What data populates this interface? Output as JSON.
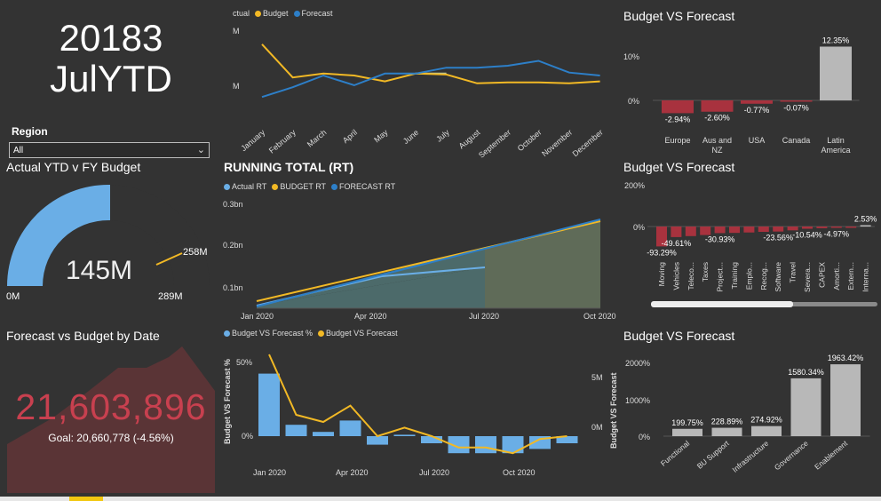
{
  "header": {
    "line1": "20183",
    "line2": "JulYTD"
  },
  "region": {
    "label": "Region",
    "value": "All"
  },
  "gauge": {
    "title": "Actual YTD v FY Budget",
    "value_label": "145M",
    "min_label": "0M",
    "max_label": "289M",
    "target_label": "258M",
    "value": 145,
    "max": 289,
    "target": 258,
    "color": "#6aaee6"
  },
  "forecast_date": {
    "title": "Forecast vs Budget by Date",
    "kpi": "21,603,896",
    "goal": "Goal: 20,660,778 (-4.56%)",
    "color": "#c8404f"
  },
  "monthly_line": {
    "legend": [
      "ctual",
      "Budget",
      "Forecast"
    ],
    "y_ticks": [
      "M",
      "M"
    ],
    "months": [
      "January",
      "February",
      "March",
      "April",
      "May",
      "June",
      "July",
      "August",
      "September",
      "October",
      "November",
      "December"
    ],
    "actual": [
      null,
      null,
      null,
      null,
      null,
      0.52,
      0.52,
      null,
      null,
      null,
      null,
      null
    ],
    "budget": [
      0.82,
      0.48,
      0.52,
      0.5,
      0.44,
      0.52,
      0.51,
      0.42,
      0.43,
      0.43,
      0.42,
      0.44
    ],
    "forecast": [
      0.28,
      0.38,
      0.5,
      0.4,
      0.52,
      0.52,
      0.58,
      0.58,
      0.6,
      0.65,
      0.53,
      0.5
    ]
  },
  "running_total": {
    "title": "RUNNING TOTAL (RT)",
    "legend": [
      "Actual RT",
      "BUDGET RT",
      "FORECAST RT"
    ],
    "y_ticks": [
      "0.1bn",
      "0.2bn",
      "0.3bn"
    ],
    "x_ticks": [
      "Jan 2020",
      "Apr 2020",
      "Jul 2020",
      "Oct 2020"
    ]
  },
  "budget_pct": {
    "legend": [
      "Budget VS Forecast %",
      "Budget VS Forecast"
    ],
    "y_left_label": "Budget VS Forecast %",
    "y_right_label": "Budget VS Forecast",
    "y_left_ticks": [
      "0%",
      "50%"
    ],
    "y_right_ticks": [
      "0M",
      "5M"
    ],
    "x_ticks": [
      "Jan 2020",
      "Apr 2020",
      "Jul 2020",
      "Oct 2020"
    ]
  },
  "bvf_region": {
    "title": "Budget VS Forecast",
    "y_ticks": [
      "0%",
      "10%"
    ],
    "categories": [
      "Europe",
      "Aus and NZ",
      "USA",
      "Canada",
      "Latin America"
    ],
    "values": [
      -2.94,
      -2.6,
      -0.77,
      -0.07,
      12.35
    ],
    "labels": [
      "-2.94%",
      "-2.60%",
      "-0.77%",
      "-0.07%",
      "12.35%"
    ]
  },
  "bvf_category": {
    "title": "Budget VS Forecast",
    "y_ticks": [
      "0%",
      "200%"
    ],
    "categories": [
      "Moving",
      "Vehicles",
      "Teleco...",
      "Taxes",
      "Project...",
      "Training",
      "Emplo...",
      "Recog...",
      "Software",
      "Travel",
      "Severa...",
      "CAPEX",
      "Amorti...",
      "Extern...",
      "Interna..."
    ],
    "values": [
      -93.29,
      -49.61,
      -45,
      -40,
      -30.93,
      -30,
      -28,
      -25,
      -23.56,
      -18,
      -10.54,
      -8,
      -4.97,
      -3,
      2.53
    ],
    "labels": [
      "-93.29%",
      "-49.61%",
      "",
      "",
      "-30.93%",
      "",
      "",
      "",
      "-23.56%",
      "",
      "-10.54%",
      "",
      "-4.97%",
      "",
      "2.53%"
    ]
  },
  "bvf_dept": {
    "title": "Budget VS Forecast",
    "y_ticks": [
      "0%",
      "1000%",
      "2000%"
    ],
    "categories": [
      "Functional",
      "BU Support",
      "Infrastructure",
      "Governance",
      "Enablement"
    ],
    "values": [
      199.75,
      228.89,
      274.92,
      1580.34,
      1963.42
    ],
    "labels": [
      "199.75%",
      "228.89%",
      "274.92%",
      "1580.34%",
      "1963.42%"
    ]
  },
  "colors": {
    "actual": "#6aaee6",
    "budget": "#f2b925",
    "forecast": "#2d7fc8",
    "neg": "#a8323e",
    "pos": "#b8b8b8",
    "bg": "#333333"
  }
}
